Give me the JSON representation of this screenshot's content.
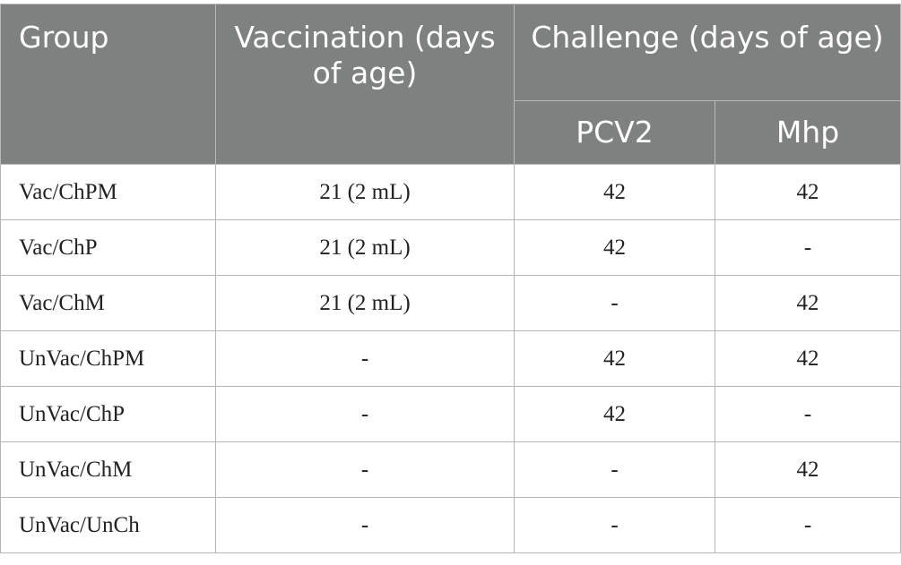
{
  "header": {
    "group": "Group",
    "vaccination": "Vaccination (days of age)",
    "challenge": "Challenge (days of age)",
    "pcv2": "PCV2",
    "mhp": "Mhp"
  },
  "rows": [
    {
      "group": "Vac/ChPM",
      "vaccination": "21 (2 mL)",
      "pcv2": "42",
      "mhp": "42"
    },
    {
      "group": "Vac/ChP",
      "vaccination": "21 (2 mL)",
      "pcv2": "42",
      "mhp": "-"
    },
    {
      "group": "Vac/ChM",
      "vaccination": "21 (2 mL)",
      "pcv2": "-",
      "mhp": "42"
    },
    {
      "group": "UnVac/ChPM",
      "vaccination": "-",
      "pcv2": "42",
      "mhp": "42"
    },
    {
      "group": "UnVac/ChP",
      "vaccination": "-",
      "pcv2": "42",
      "mhp": "-"
    },
    {
      "group": "UnVac/ChM",
      "vaccination": "-",
      "pcv2": "-",
      "mhp": "42"
    },
    {
      "group": "UnVac/UnCh",
      "vaccination": "-",
      "pcv2": "-",
      "mhp": "-"
    }
  ]
}
